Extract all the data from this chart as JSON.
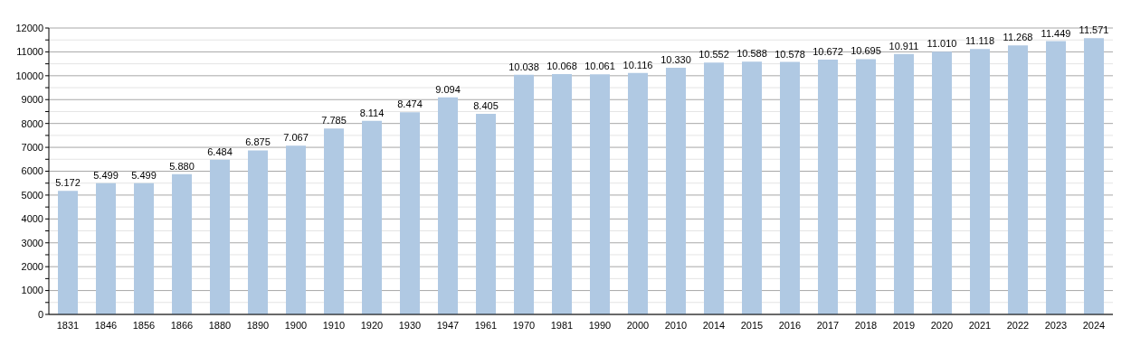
{
  "chart_data": {
    "type": "bar",
    "categories": [
      "1831",
      "1846",
      "1856",
      "1866",
      "1880",
      "1890",
      "1900",
      "1910",
      "1920",
      "1930",
      "1947",
      "1961",
      "1970",
      "1981",
      "1990",
      "2000",
      "2010",
      "2014",
      "2015",
      "2016",
      "2017",
      "2018",
      "2019",
      "2020",
      "2021",
      "2022",
      "2023",
      "2024"
    ],
    "values": [
      5172,
      5499,
      5499,
      5880,
      6484,
      6875,
      7067,
      7785,
      8114,
      8474,
      9094,
      8405,
      10038,
      10068,
      10061,
      10116,
      10330,
      10552,
      10588,
      10578,
      10672,
      10695,
      10911,
      11010,
      11118,
      11268,
      11449,
      11571
    ],
    "value_labels": [
      "5.172",
      "5.499",
      "5.499",
      "5.880",
      "6.484",
      "6.875",
      "7.067",
      "7.785",
      "8.114",
      "8.474",
      "9.094",
      "8.405",
      "10.038",
      "10.068",
      "10.061",
      "10.116",
      "10.330",
      "10.552",
      "10.588",
      "10.578",
      "10.672",
      "10.695",
      "10.911",
      "11.010",
      "11.118",
      "11.268",
      "11.449",
      "11.571"
    ],
    "color": "#b0c9e3",
    "ylim": [
      0,
      12000
    ],
    "yticks": [
      0,
      {
        "value": 500,
        "label": null
      },
      1000,
      {
        "value": 1500,
        "label": null
      },
      2000,
      {
        "value": 2500,
        "label": null
      },
      3000,
      {
        "value": 3500,
        "label": null
      },
      4000,
      {
        "value": 4500,
        "label": null
      },
      5000,
      {
        "value": 5500,
        "label": null
      },
      6000,
      {
        "value": 6500,
        "label": null
      },
      7000,
      {
        "value": 7500,
        "label": null
      },
      8000,
      {
        "value": 8500,
        "label": null
      },
      9000,
      {
        "value": 9500,
        "label": null
      },
      10000,
      {
        "value": 10500,
        "label": null
      },
      11000,
      {
        "value": 11500,
        "label": null
      },
      12000
    ],
    "grid": "y"
  }
}
